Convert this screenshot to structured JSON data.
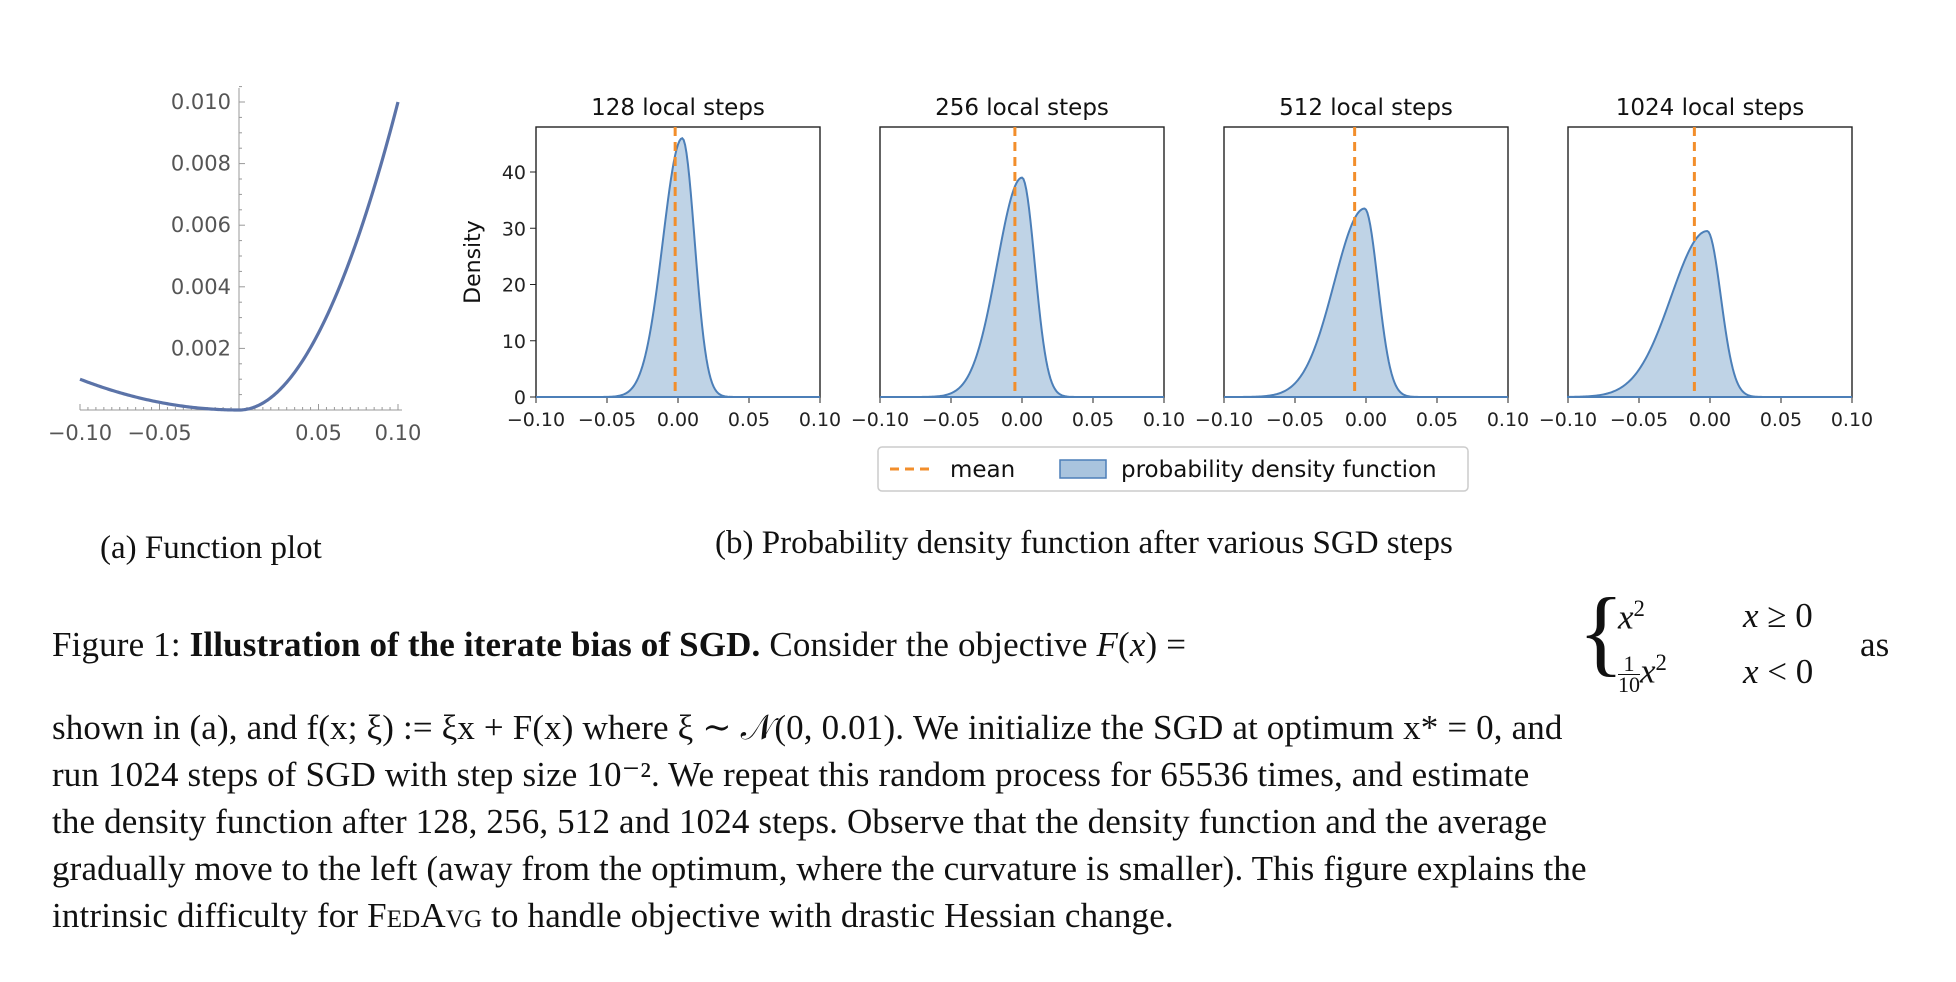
{
  "function_plot": {
    "caption": "(a) Function plot",
    "x_ticks": [
      "−0.10",
      "−0.05",
      "0.05",
      "0.10"
    ],
    "y_ticks": [
      "0.002",
      "0.004",
      "0.006",
      "0.008",
      "0.010"
    ],
    "line_color": "#5b73a8"
  },
  "kde_plots": {
    "caption": "(b) Probability density function after various SGD steps",
    "ylabel": "Density",
    "y_ticks": [
      "0",
      "10",
      "20",
      "30",
      "40"
    ],
    "x_ticks": [
      "−0.10",
      "−0.05",
      "0.00",
      "0.05",
      "0.10"
    ],
    "legend": {
      "mean": "mean",
      "pdf": "probability density function"
    },
    "mean_color": "#f28e2b",
    "fill_color": "#a9c4de",
    "edge_color": "#4c7fb8"
  },
  "chart_data": [
    {
      "type": "line",
      "title": "",
      "xlabel": "",
      "ylabel": "",
      "xlim": [
        -0.1,
        0.1
      ],
      "ylim": [
        0,
        0.0105
      ],
      "series": [
        {
          "function": "F(x)=x^2 for x>=0; x^2/10 for x<0",
          "x": [
            -0.1,
            -0.05,
            0,
            0.05,
            0.1
          ],
          "y": [
            0.001,
            0.00025,
            0,
            0.0025,
            0.01
          ]
        }
      ]
    },
    {
      "type": "area",
      "title": "128 local steps",
      "xlim": [
        -0.1,
        0.1
      ],
      "ylim": [
        0,
        48
      ],
      "mean": -0.002,
      "peak_x": 0.003,
      "peak_y": 46
    },
    {
      "type": "area",
      "title": "256 local steps",
      "xlim": [
        -0.1,
        0.1
      ],
      "ylim": [
        0,
        48
      ],
      "mean": -0.005,
      "peak_x": 0.0,
      "peak_y": 39
    },
    {
      "type": "area",
      "title": "512 local steps",
      "xlim": [
        -0.1,
        0.1
      ],
      "ylim": [
        0,
        48
      ],
      "mean": -0.008,
      "peak_x": -0.001,
      "peak_y": 33.5
    },
    {
      "type": "area",
      "title": "1024 local steps",
      "xlim": [
        -0.1,
        0.1
      ],
      "ylim": [
        0,
        48
      ],
      "mean": -0.011,
      "peak_x": -0.002,
      "peak_y": 29.5
    }
  ],
  "figure_caption": {
    "label": "Figure 1:",
    "bold": "Illustration of the iterate bias of SGD.",
    "line1_text": "Consider the objective",
    "line1_after": "as",
    "line2": "shown in (a), and f(x; ξ) := ξx + F(x) where ξ ∼ 𝒩(0, 0.01). We initialize the SGD at optimum x* = 0, and",
    "line3": "run 1024 steps of SGD with step size 10⁻². We repeat this random process for 65536 times, and estimate",
    "line4": "the density function after 128, 256, 512 and 1024 steps. Observe that the density function and the average",
    "line5": "gradually move to the left (away from the optimum, where the curvature is smaller). This figure explains the",
    "line6_pre": "intrinsic difficulty for ",
    "line6_fedavg": "FedAvg",
    "line6_post": " to handle objective with drastic Hessian change."
  }
}
